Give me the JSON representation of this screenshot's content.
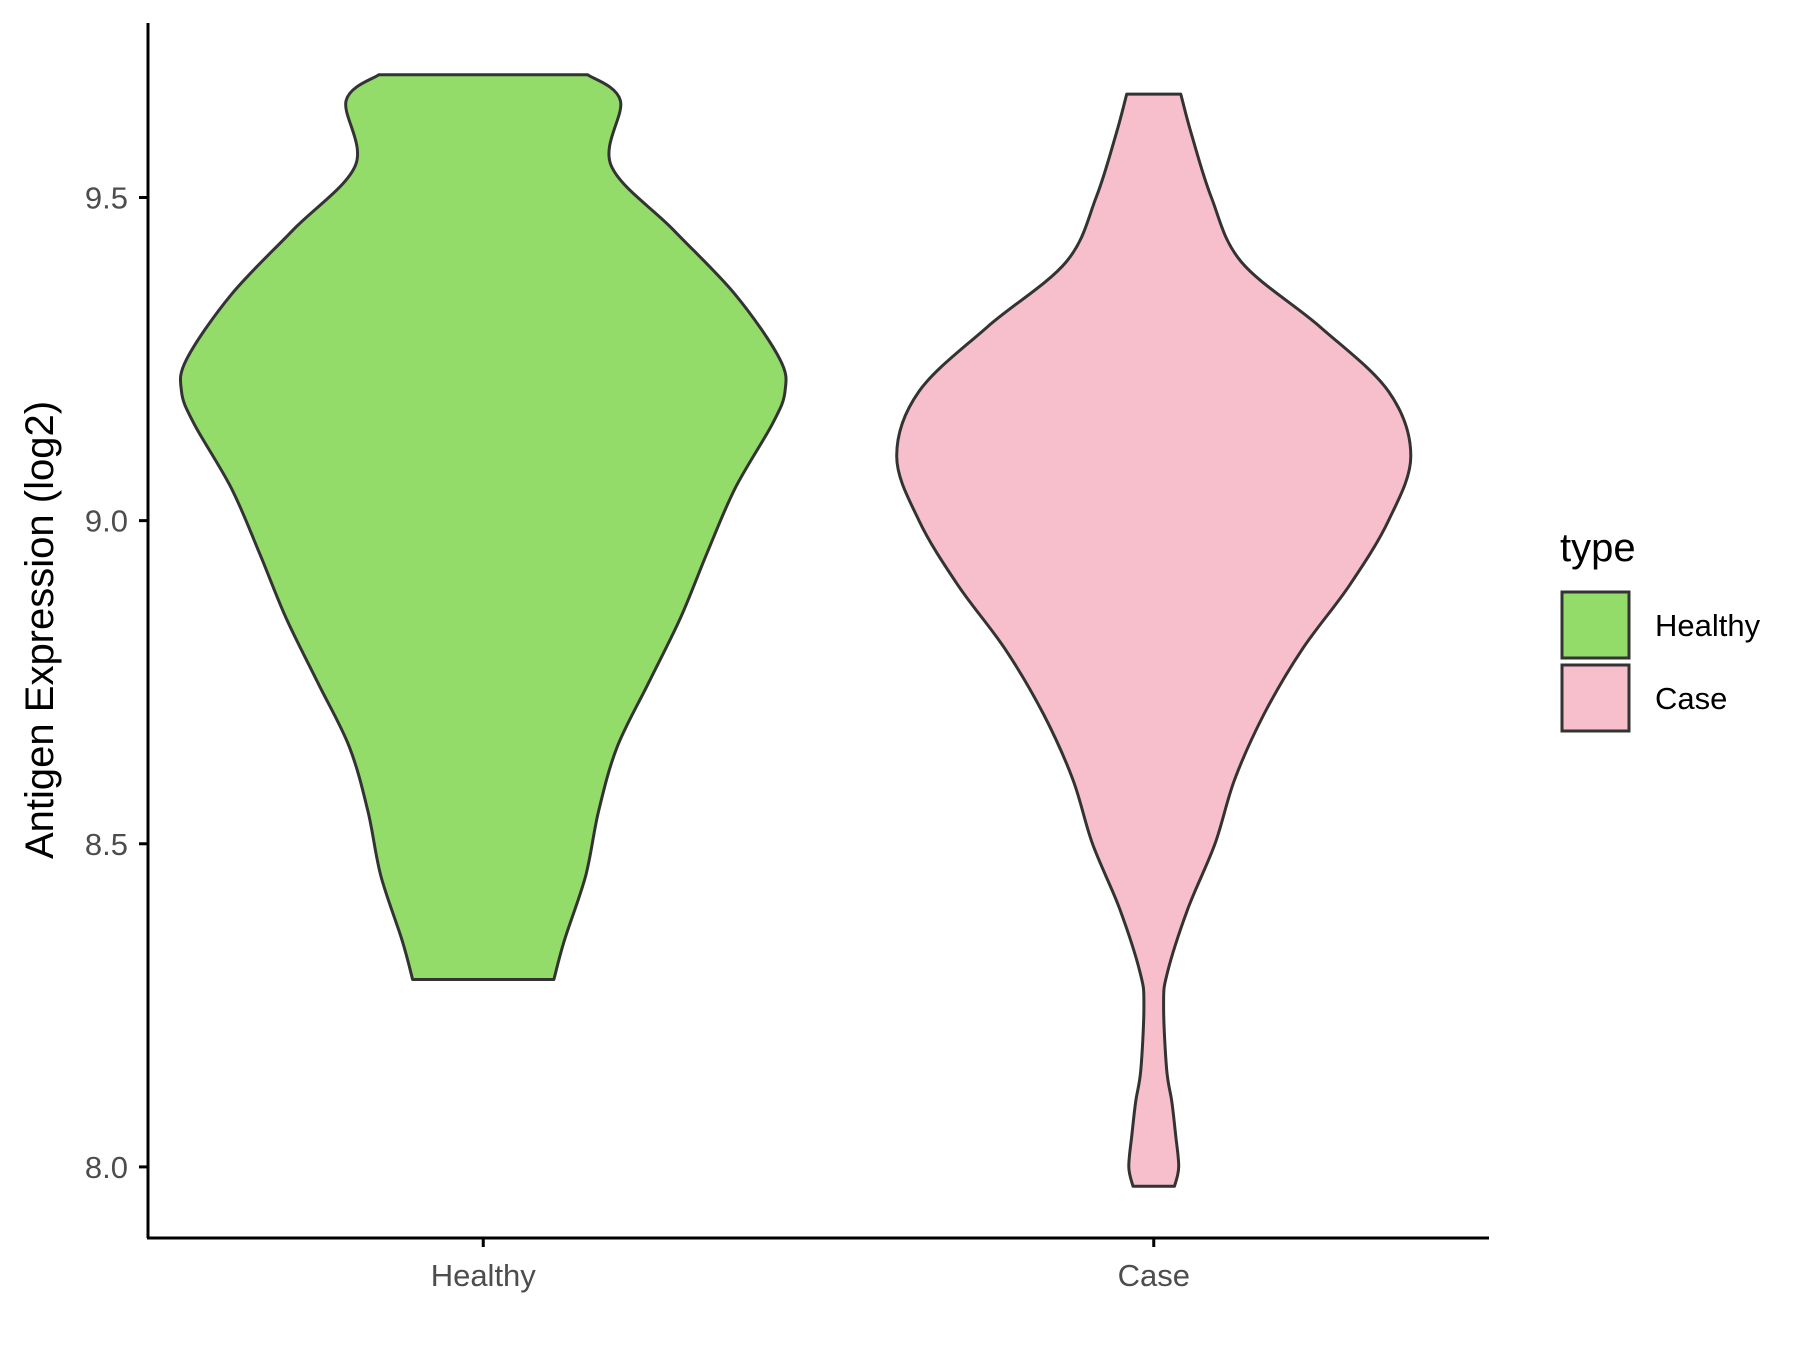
{
  "chart_data": {
    "type": "violin",
    "title": "",
    "xlabel": "",
    "ylabel": "Antigen Expression (log2)",
    "categories": [
      "Healthy",
      "Case"
    ],
    "ylim": [
      7.89,
      9.77
    ],
    "yticks": [
      "8.0",
      "8.5",
      "9.0",
      "9.5"
    ],
    "grid": false,
    "legend": {
      "title": "type",
      "placement": "right",
      "entries": [
        {
          "label": "Healthy",
          "color": "#93DC69"
        },
        {
          "label": "Case",
          "color": "#F7BFCB"
        }
      ]
    },
    "outline_color": "#333333",
    "series": [
      {
        "category": "Healthy",
        "color": "#93DC69",
        "min": 8.29,
        "max": 9.69,
        "profile": [
          [
            8.29,
            0.136
          ],
          [
            8.35,
            0.156
          ],
          [
            8.45,
            0.197
          ],
          [
            8.55,
            0.222
          ],
          [
            8.65,
            0.258
          ],
          [
            8.75,
            0.319
          ],
          [
            8.85,
            0.38
          ],
          [
            8.95,
            0.431
          ],
          [
            9.05,
            0.485
          ],
          [
            9.15,
            0.557
          ],
          [
            9.2,
            0.581
          ],
          [
            9.25,
            0.571
          ],
          [
            9.35,
            0.485
          ],
          [
            9.45,
            0.366
          ],
          [
            9.55,
            0.246
          ],
          [
            9.65,
            0.264
          ],
          [
            9.69,
            0.201
          ]
        ]
      },
      {
        "category": "Case",
        "color": "#F7BFCB",
        "min": 7.97,
        "max": 9.66,
        "profile": [
          [
            7.97,
            0.04
          ],
          [
            8.0,
            0.048
          ],
          [
            8.05,
            0.042
          ],
          [
            8.1,
            0.035
          ],
          [
            8.15,
            0.025
          ],
          [
            8.25,
            0.019
          ],
          [
            8.3,
            0.026
          ],
          [
            8.4,
            0.066
          ],
          [
            8.5,
            0.118
          ],
          [
            8.6,
            0.156
          ],
          [
            8.7,
            0.212
          ],
          [
            8.8,
            0.285
          ],
          [
            8.9,
            0.377
          ],
          [
            9.0,
            0.452
          ],
          [
            9.1,
            0.495
          ],
          [
            9.2,
            0.452
          ],
          [
            9.3,
            0.32
          ],
          [
            9.4,
            0.169
          ],
          [
            9.5,
            0.111
          ],
          [
            9.6,
            0.072
          ],
          [
            9.66,
            0.052
          ]
        ]
      }
    ]
  }
}
